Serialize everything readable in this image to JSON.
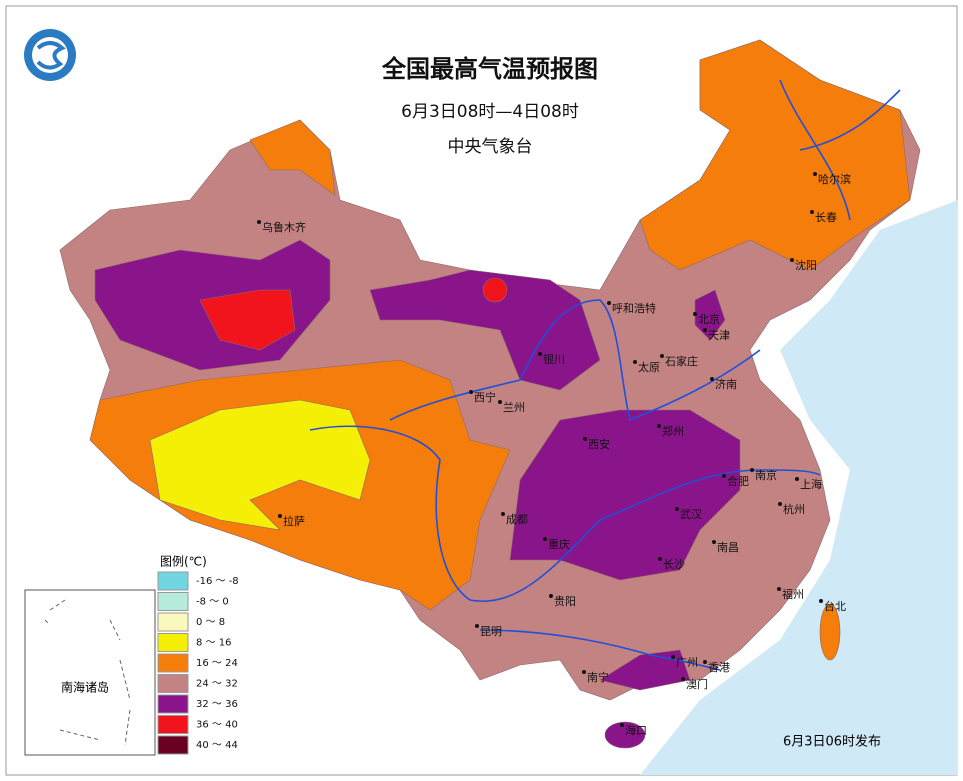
{
  "title": "全国最高气温预报图",
  "subtitle": "6月3日08时—4日08时",
  "publisher": "中央气象台",
  "legend": {
    "title": "图例(℃)",
    "items": [
      {
        "label": "-16 ～ -8",
        "color": "#6fd6e2"
      },
      {
        "label": "-8 ～ 0",
        "color": "#b6ecdc"
      },
      {
        "label": "0 ～ 8",
        "color": "#fbf8be"
      },
      {
        "label": "8 ～ 16",
        "color": "#f5ef05"
      },
      {
        "label": "16 ～ 24",
        "color": "#f47d0c"
      },
      {
        "label": "24 ～ 32",
        "color": "#c38383"
      },
      {
        "label": "32 ～ 36",
        "color": "#8a1489"
      },
      {
        "label": "36 ～ 40",
        "color": "#f2141c"
      },
      {
        "label": "40 ～ 44",
        "color": "#6a0022"
      }
    ]
  },
  "cities": [
    "乌鲁木齐",
    "哈尔滨",
    "长春",
    "沈阳",
    "呼和浩特",
    "北京",
    "天津",
    "石家庄",
    "太原",
    "济南",
    "银川",
    "西宁",
    "兰州",
    "西安",
    "郑州",
    "合肥",
    "南京",
    "上海",
    "成都",
    "武汉",
    "杭州",
    "重庆",
    "长沙",
    "南昌",
    "拉萨",
    "贵阳",
    "福州",
    "台北",
    "昆明",
    "南宁",
    "广州",
    "香港",
    "澳门",
    "海口"
  ],
  "inset_label": "南海诸岛",
  "issue_time": "6月3日06时发布"
}
